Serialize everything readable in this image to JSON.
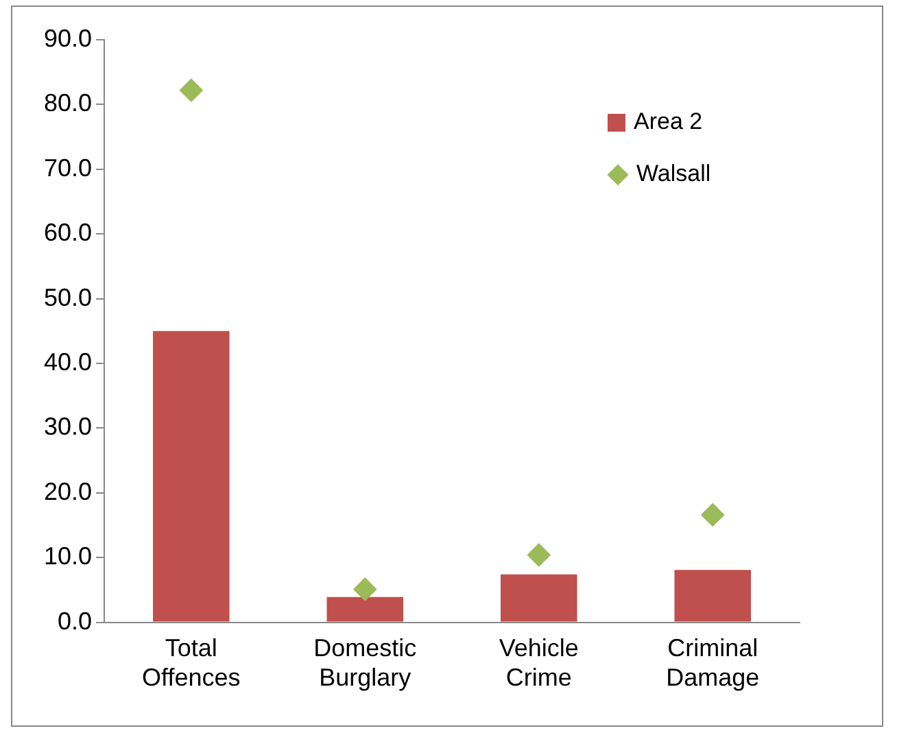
{
  "chart_data": {
    "type": "bar",
    "categories": [
      "Total Offences",
      "Domestic Burglary",
      "Vehicle Crime",
      "Criminal Damage"
    ],
    "series": [
      {
        "name": "Area 2",
        "color": "#c0504d",
        "values": [
          45.0,
          3.9,
          7.4,
          8.1
        ]
      },
      {
        "name": "Walsall",
        "type": "scatter",
        "color": "#9bbb59",
        "marker": "diamond",
        "values": [
          82.2,
          5.1,
          10.4,
          16.6
        ]
      }
    ],
    "ylim": [
      0,
      90
    ],
    "yticks": [
      {
        "value": 0,
        "label": "0.0"
      },
      {
        "value": 10,
        "label": "10.0"
      },
      {
        "value": 20,
        "label": "20.0"
      },
      {
        "value": 30,
        "label": "30.0"
      },
      {
        "value": 40,
        "label": "40.0"
      },
      {
        "value": 50,
        "label": "50.0"
      },
      {
        "value": 60,
        "label": "60.0"
      },
      {
        "value": 70,
        "label": "70.0"
      },
      {
        "value": 80,
        "label": "80.0"
      },
      {
        "value": 90,
        "label": "90.0"
      }
    ],
    "grid": false,
    "legend": "top right"
  }
}
